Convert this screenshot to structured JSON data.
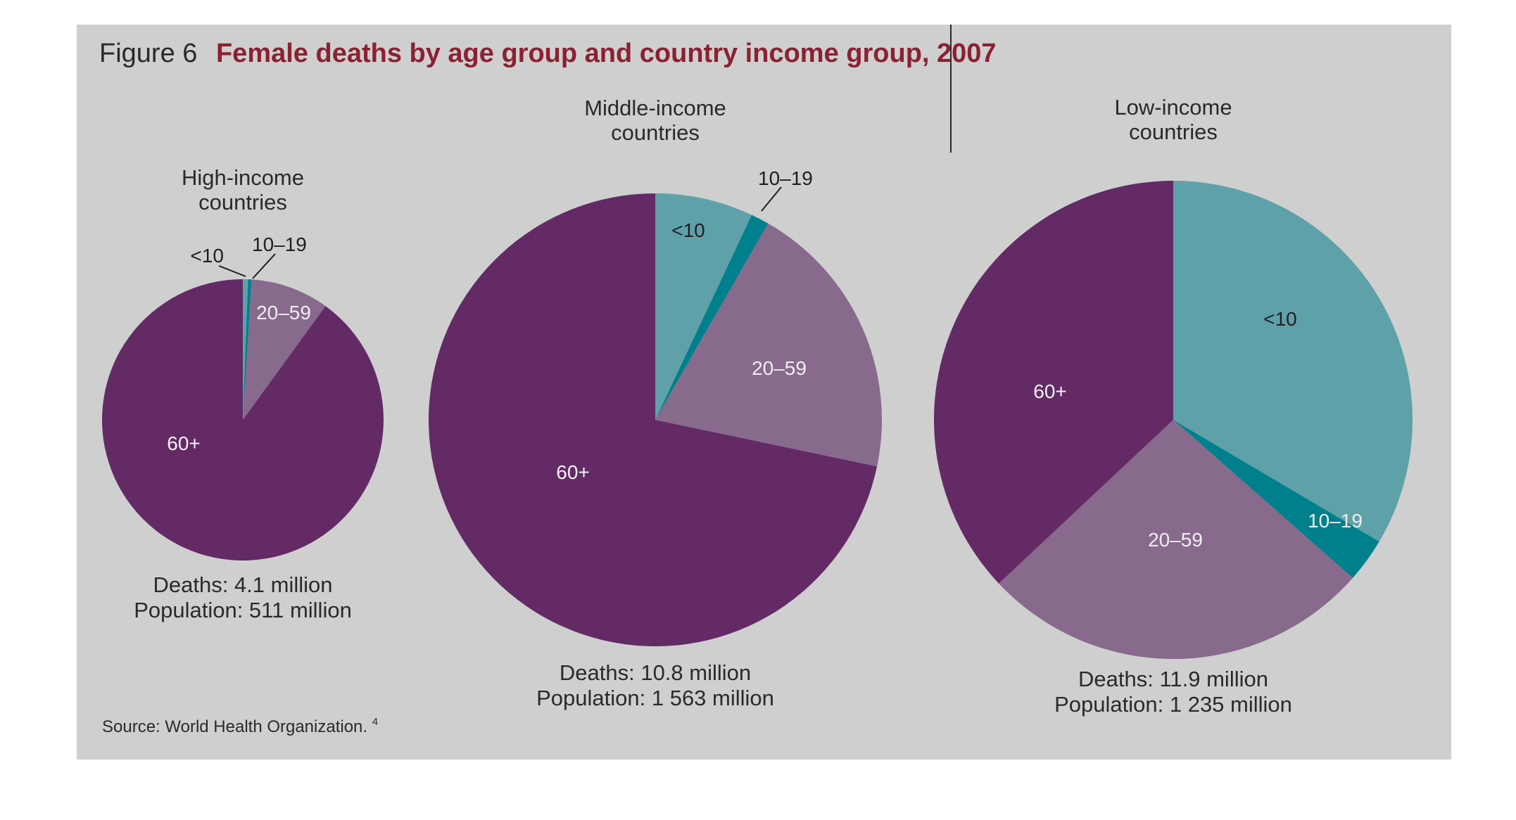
{
  "figure": {
    "number": "Figure 6",
    "title": "Female deaths by age group and country income group, 2007",
    "source": "Source: World Health Organization.",
    "source_ref": "4"
  },
  "colors": {
    "panel_bg": "#cfcfcf",
    "age_lt10": "#5fa1a9",
    "age_10_19": "#00808c",
    "age_20_59": "#886a8d",
    "age_60plus": "#632a66",
    "text": "#2a2a2a",
    "title_accent": "#8b2131"
  },
  "chart_data": [
    {
      "type": "pie",
      "title": "High-income countries",
      "title_lines": [
        "High-income",
        "countries"
      ],
      "categories": [
        "<10",
        "10–19",
        "20–59",
        "60+"
      ],
      "values": [
        0.6,
        0.4,
        9.0,
        90.0
      ],
      "unit": "percent of female deaths",
      "deaths": "Deaths: 4.1 million",
      "population": "Population: 511 million"
    },
    {
      "type": "pie",
      "title": "Middle-income countries",
      "title_lines": [
        "Middle-income",
        "countries"
      ],
      "categories": [
        "<10",
        "10–19",
        "20–59",
        "60+"
      ],
      "values": [
        7.0,
        1.3,
        20.0,
        71.7
      ],
      "unit": "percent of female deaths",
      "deaths": "Deaths: 10.8 million",
      "population": "Population: 1 563 million"
    },
    {
      "type": "pie",
      "title": "Low-income countries",
      "title_lines": [
        "Low-income",
        "countries"
      ],
      "categories": [
        "<10",
        "10–19",
        "20–59",
        "60+"
      ],
      "values": [
        33.5,
        3.0,
        26.5,
        37.0
      ],
      "unit": "percent of female deaths",
      "deaths": "Deaths: 11.9 million",
      "population": "Population: 1 235 million"
    }
  ]
}
